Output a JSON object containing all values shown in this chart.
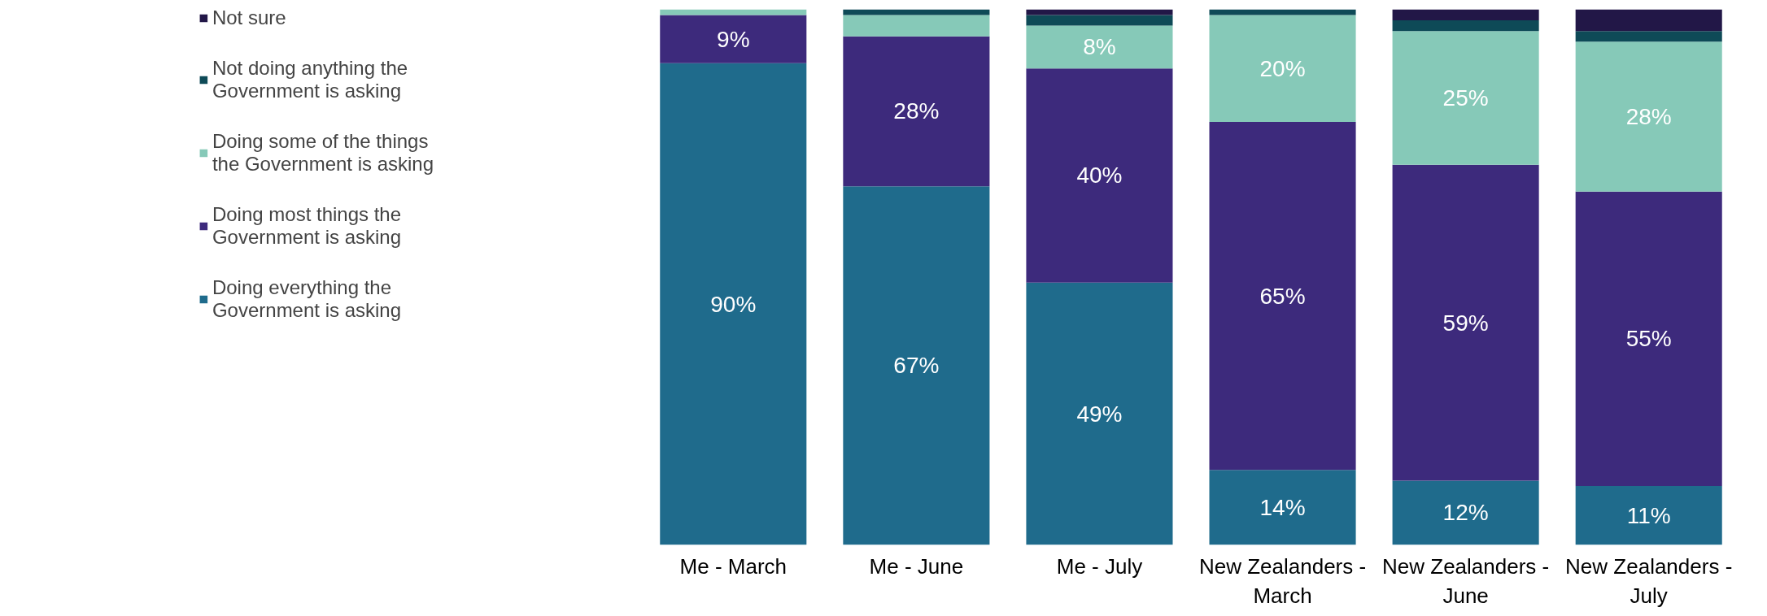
{
  "chart_data": {
    "type": "bar",
    "stacked": true,
    "legend": "left",
    "categories": [
      "Me - March",
      "Me - June",
      "Me - July",
      "New Zealanders - March",
      "New Zealanders - June",
      "New Zealanders - July"
    ],
    "series": [
      {
        "name": "Doing everything the Government is asking",
        "color": "#1f6b8c",
        "values": [
          90,
          67,
          49,
          14,
          12,
          11
        ],
        "value_labels": [
          "90%",
          "67%",
          "49%",
          "14%",
          "12%",
          "11%"
        ]
      },
      {
        "name": "Doing most things the Government is asking",
        "color": "#3d2a7c",
        "values": [
          9,
          28,
          40,
          65,
          59,
          55
        ],
        "value_labels": [
          "9%",
          "28%",
          "40%",
          "65%",
          "59%",
          "55%"
        ]
      },
      {
        "name": "Doing some of the things the Government is asking",
        "color": "#86c9b8",
        "values": [
          1,
          4,
          8,
          20,
          25,
          28
        ],
        "value_labels": [
          null,
          null,
          "8%",
          "20%",
          "25%",
          "28%"
        ]
      },
      {
        "name": "Not doing anything the Government is asking",
        "color": "#0e4a57",
        "values": [
          0,
          1,
          2,
          1,
          2,
          2
        ],
        "value_labels": [
          null,
          null,
          null,
          null,
          null,
          null
        ]
      },
      {
        "name": "Not sure",
        "color": "#221747",
        "values": [
          0,
          0,
          1,
          0,
          2,
          4
        ],
        "value_labels": [
          null,
          null,
          null,
          null,
          null,
          null
        ]
      }
    ]
  }
}
